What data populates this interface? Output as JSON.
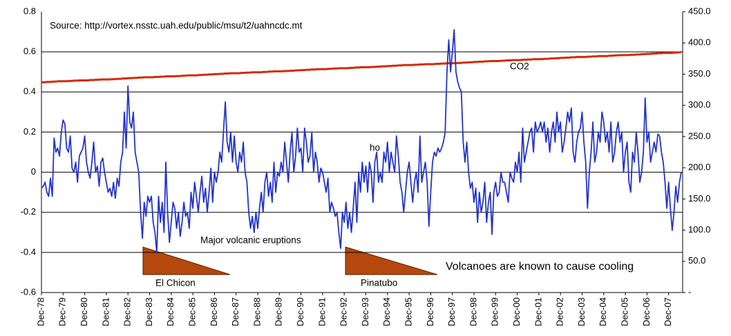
{
  "chart_data": {
    "type": "line",
    "annotations": [
      "Source: http://vortex.nsstc.uah.edu/public/msu/t2/uahncdc.mt",
      "CO2",
      "ho",
      "Major volcanic eruptions",
      "El Chicon",
      "Pinatubo",
      "Volcanoes are known to cause cooling"
    ],
    "categories": [
      "Dec-78",
      null,
      null,
      null,
      null,
      null,
      null,
      null,
      null,
      null,
      null,
      null,
      "Dec-79",
      null,
      null,
      null,
      null,
      null,
      null,
      null,
      null,
      null,
      null,
      null,
      "Dec-80",
      null,
      null,
      null,
      null,
      null,
      null,
      null,
      null,
      null,
      null,
      null,
      "Dec-81",
      null,
      null,
      null,
      null,
      null,
      null,
      null,
      null,
      null,
      null,
      null,
      "Dec-82",
      null,
      null,
      null,
      null,
      null,
      null,
      null,
      null,
      null,
      null,
      null,
      "Dec-83",
      null,
      null,
      null,
      null,
      null,
      null,
      null,
      null,
      null,
      null,
      null,
      "Dec-84",
      null,
      null,
      null,
      null,
      null,
      null,
      null,
      null,
      null,
      null,
      null,
      "Dec-85",
      null,
      null,
      null,
      null,
      null,
      null,
      null,
      null,
      null,
      null,
      null,
      "Dec-86",
      null,
      null,
      null,
      null,
      null,
      null,
      null,
      null,
      null,
      null,
      null,
      "Dec-87",
      null,
      null,
      null,
      null,
      null,
      null,
      null,
      null,
      null,
      null,
      null,
      "Dec-88",
      null,
      null,
      null,
      null,
      null,
      null,
      null,
      null,
      null,
      null,
      null,
      "Dec-89",
      null,
      null,
      null,
      null,
      null,
      null,
      null,
      null,
      null,
      null,
      null,
      "Dec-90",
      null,
      null,
      null,
      null,
      null,
      null,
      null,
      null,
      null,
      null,
      null,
      "Dec-91",
      null,
      null,
      null,
      null,
      null,
      null,
      null,
      null,
      null,
      null,
      null,
      "Dec-92",
      null,
      null,
      null,
      null,
      null,
      null,
      null,
      null,
      null,
      null,
      null,
      "Dec-93",
      null,
      null,
      null,
      null,
      null,
      null,
      null,
      null,
      null,
      null,
      null,
      "Dec-94",
      null,
      null,
      null,
      null,
      null,
      null,
      null,
      null,
      null,
      null,
      null,
      "Dec-95",
      null,
      null,
      null,
      null,
      null,
      null,
      null,
      null,
      null,
      null,
      null,
      "Dec-96",
      null,
      null,
      null,
      null,
      null,
      null,
      null,
      null,
      null,
      null,
      null,
      "Dec-97",
      null,
      null,
      null,
      null,
      null,
      null,
      null,
      null,
      null,
      null,
      null,
      "Dec-98",
      null,
      null,
      null,
      null,
      null,
      null,
      null,
      null,
      null,
      null,
      null,
      "Dec-99",
      null,
      null,
      null,
      null,
      null,
      null,
      null,
      null,
      null,
      null,
      null,
      "Dec-00",
      null,
      null,
      null,
      null,
      null,
      null,
      null,
      null,
      null,
      null,
      null,
      "Dec-01",
      null,
      null,
      null,
      null,
      null,
      null,
      null,
      null,
      null,
      null,
      null,
      "Dec-02",
      null,
      null,
      null,
      null,
      null,
      null,
      null,
      null,
      null,
      null,
      null,
      "Dec-03",
      null,
      null,
      null,
      null,
      null,
      null,
      null,
      null,
      null,
      null,
      null,
      "Dec-04",
      null,
      null,
      null,
      null,
      null,
      null,
      null,
      null,
      null,
      null,
      null,
      "Dec-05",
      null,
      null,
      null,
      null,
      null,
      null,
      null,
      null,
      null,
      null,
      null,
      "Dec-06",
      null,
      null,
      null,
      null,
      null,
      null,
      null,
      null,
      null,
      null,
      null,
      "Dec-07",
      null,
      null,
      null,
      null,
      null,
      null,
      null
    ],
    "series": [
      {
        "color": "#2233cc",
        "values": [
          -0.08,
          -0.07,
          -0.05,
          -0.1,
          -0.12,
          -0.03,
          -0.12,
          0.17,
          0.1,
          0.12,
          0.08,
          0.2,
          0.26,
          0.24,
          0.12,
          0.1,
          0.18,
          0.02,
          0.0,
          0.05,
          -0.05,
          0.08,
          0.1,
          0.12,
          0.18,
          0.05,
          0.0,
          -0.03,
          0.05,
          0.15,
          0.0,
          0.03,
          -0.07,
          0.05,
          0.07,
          0.0,
          -0.05,
          -0.1,
          -0.08,
          -0.12,
          -0.05,
          -0.13,
          -0.03,
          -0.07,
          0.05,
          0.1,
          0.3,
          0.12,
          0.43,
          0.25,
          0.22,
          0.3,
          0.1,
          0.05,
          0.0,
          -0.2,
          -0.33,
          -0.15,
          -0.22,
          -0.12,
          -0.15,
          -0.12,
          -0.25,
          -0.3,
          -0.4,
          -0.12,
          -0.25,
          -0.15,
          -0.3,
          0.05,
          -0.2,
          -0.35,
          -0.25,
          -0.15,
          -0.18,
          -0.28,
          -0.2,
          -0.32,
          -0.25,
          -0.15,
          -0.22,
          -0.2,
          -0.28,
          -0.1,
          -0.18,
          -0.05,
          -0.12,
          -0.2,
          -0.1,
          -0.02,
          -0.15,
          -0.08,
          -0.2,
          -0.1,
          0.02,
          -0.15,
          0.0,
          -0.05,
          0.0,
          0.1,
          0.05,
          0.2,
          0.35,
          0.15,
          0.1,
          0.2,
          0.05,
          0.18,
          0.05,
          0.0,
          0.1,
          0.05,
          0.15,
          0.0,
          -0.05,
          -0.2,
          -0.28,
          -0.22,
          -0.3,
          -0.2,
          -0.28,
          -0.18,
          -0.1,
          -0.2,
          -0.05,
          0.0,
          -0.12,
          -0.05,
          -0.15,
          0.05,
          -0.1,
          0.0,
          -0.02,
          0.05,
          0.0,
          0.15,
          0.05,
          -0.05,
          0.1,
          0.2,
          0.0,
          0.08,
          0.22,
          0.1,
          0.12,
          0.0,
          0.22,
          0.15,
          0.05,
          0.08,
          0.2,
          0.0,
          0.1,
          0.05,
          -0.05,
          0.02,
          0.0,
          -0.05,
          -0.1,
          -0.03,
          -0.2,
          -0.15,
          -0.18,
          -0.22,
          -0.2,
          -0.3,
          -0.38,
          -0.2,
          -0.25,
          -0.15,
          -0.28,
          -0.2,
          -0.3,
          -0.18,
          -0.05,
          -0.25,
          0.0,
          -0.1,
          0.05,
          -0.05,
          0.03,
          -0.1,
          0.05,
          0.0,
          -0.15,
          0.05,
          0.1,
          -0.05,
          0.0,
          -0.05,
          0.1,
          0.05,
          0.15,
          0.0,
          0.1,
          0.05,
          0.0,
          0.18,
          0.08,
          -0.05,
          -0.1,
          -0.2,
          -0.1,
          0.0,
          0.05,
          -0.05,
          -0.15,
          -0.05,
          0.0,
          -0.1,
          0.18,
          -0.05,
          0.0,
          0.05,
          -0.05,
          -0.27,
          -0.1,
          0.05,
          0.1,
          0.08,
          0.12,
          0.1,
          0.12,
          0.15,
          0.2,
          0.5,
          0.66,
          0.5,
          0.6,
          0.71,
          0.5,
          0.45,
          0.42,
          0.4,
          0.15,
          0.05,
          0.15,
          0.0,
          -0.08,
          -0.05,
          -0.15,
          -0.08,
          -0.25,
          -0.1,
          -0.2,
          -0.15,
          -0.05,
          -0.25,
          -0.15,
          -0.1,
          -0.31,
          -0.1,
          -0.05,
          -0.12,
          -0.1,
          0.0,
          -0.05,
          -0.05,
          -0.1,
          -0.15,
          0.0,
          -0.03,
          -0.05,
          0.05,
          0.0,
          0.1,
          -0.05,
          0.22,
          0.05,
          0.1,
          0.15,
          0.2,
          0.22,
          0.1,
          0.25,
          0.2,
          0.22,
          0.25,
          0.2,
          0.25,
          0.15,
          0.22,
          0.1,
          0.2,
          0.25,
          0.15,
          0.3,
          0.2,
          0.25,
          0.1,
          0.15,
          0.22,
          0.3,
          0.25,
          0.32,
          0.1,
          0.05,
          0.15,
          0.2,
          0.22,
          0.3,
          0.15,
          0.05,
          -0.18,
          0.0,
          0.1,
          0.25,
          0.05,
          0.1,
          0.2,
          0.15,
          0.3,
          0.25,
          0.15,
          0.2,
          0.1,
          0.25,
          0.05,
          0.1,
          0.2,
          0.25,
          0.15,
          0.2,
          0.0,
          0.1,
          0.15,
          -0.05,
          -0.1,
          0.1,
          0.05,
          0.2,
          0.1,
          -0.05,
          0.0,
          0.1,
          0.37,
          0.15,
          0.2,
          0.05,
          0.1,
          0.15,
          0.1,
          0.19,
          0.18,
          0.1,
          0.05,
          -0.05,
          -0.18,
          -0.05,
          -0.18,
          -0.29,
          -0.2,
          -0.07,
          -0.15,
          -0.05,
          0.0
        ]
      },
      {
        "color": "#d42a00",
        "axis": "y2",
        "values": [
          337,
          337,
          337,
          337.5,
          337.5,
          337.5,
          338,
          338,
          338,
          338.5,
          338.5,
          338.5,
          338.5,
          338.5,
          338.5,
          339,
          339,
          339,
          339.5,
          339.5,
          339.5,
          340,
          340,
          340,
          340,
          340,
          340,
          340.5,
          340.5,
          340.5,
          341,
          341,
          341,
          341.5,
          341.5,
          341.5,
          341.5,
          341.5,
          341.5,
          342,
          342,
          342,
          342.5,
          342.5,
          342.5,
          343,
          343,
          343,
          343.5,
          343.5,
          343.5,
          344,
          344,
          344,
          344.5,
          344.5,
          344.5,
          345,
          345,
          345,
          345,
          345,
          345,
          345.5,
          345.5,
          345.5,
          346,
          346,
          346,
          346.5,
          346.5,
          346.5,
          346.5,
          346.5,
          346.5,
          347,
          347,
          347,
          347.5,
          347.5,
          347.5,
          348,
          348,
          348,
          348,
          348,
          348,
          348.5,
          348.5,
          348.5,
          349,
          349,
          349,
          349.5,
          349.5,
          349.5,
          350,
          350,
          350,
          350.5,
          350.5,
          350.5,
          351,
          351,
          351,
          351.5,
          351.5,
          351.5,
          351.5,
          351.5,
          351.5,
          352,
          352,
          352,
          352.5,
          352.5,
          352.5,
          353,
          353,
          353,
          353,
          353,
          353,
          353.5,
          353.5,
          353.5,
          354,
          354,
          354,
          354.5,
          354.5,
          354.5,
          354.5,
          354.5,
          354.5,
          355,
          355,
          355,
          355.5,
          355.5,
          355.5,
          356,
          356,
          356,
          356.5,
          356.5,
          356.5,
          357,
          357,
          357,
          357.5,
          357.5,
          357.5,
          358,
          358,
          358,
          358,
          358,
          358,
          358.5,
          358.5,
          358.5,
          359,
          359,
          359,
          359.5,
          359.5,
          359.5,
          359.5,
          359.5,
          359.5,
          360,
          360,
          360,
          360.5,
          360.5,
          360.5,
          361,
          361,
          361,
          361,
          361,
          361,
          361.5,
          361.5,
          361.5,
          362,
          362,
          362,
          362.5,
          362.5,
          362.5,
          363,
          363,
          363,
          363.5,
          363.5,
          363.5,
          364,
          364,
          364,
          364.5,
          364.5,
          364.5,
          364.5,
          364.5,
          364.5,
          365,
          365,
          365,
          365.5,
          365.5,
          365.5,
          366,
          366,
          366,
          366,
          366,
          366,
          366.5,
          366.5,
          366.5,
          367,
          367,
          367,
          367.5,
          367.5,
          367.5,
          367.5,
          367.5,
          367.5,
          368,
          368,
          368,
          368.5,
          368.5,
          368.5,
          369,
          369,
          369,
          369.5,
          369.5,
          369.5,
          370,
          370,
          370,
          370.5,
          370.5,
          370.5,
          371,
          371,
          371,
          371,
          371,
          371,
          371.5,
          371.5,
          371.5,
          372,
          372,
          372,
          372.5,
          372.5,
          372.5,
          372.5,
          372.5,
          372.5,
          373,
          373,
          373,
          373.5,
          373.5,
          373.5,
          374,
          374,
          374,
          374,
          374,
          374,
          374.5,
          374.5,
          374.5,
          375,
          375,
          375,
          375.5,
          375.5,
          375.5,
          376,
          376,
          376,
          376.5,
          376.5,
          376.5,
          377,
          377,
          377,
          377.5,
          377.5,
          377.5,
          377.5,
          377.5,
          377.5,
          378,
          378,
          378,
          378.5,
          378.5,
          378.5,
          379,
          379,
          379,
          379,
          379,
          379,
          379.5,
          379.5,
          379.5,
          380,
          380,
          380,
          380.5,
          380.5,
          380.5,
          380.5,
          380.5,
          380.5,
          381,
          381,
          381,
          381.5,
          381.5,
          381.5,
          382,
          382,
          382,
          382.5,
          382.5,
          382.5,
          383,
          383,
          383,
          383.5,
          383.5,
          383.5,
          384,
          384,
          384,
          384,
          384,
          384,
          384.5,
          384.5,
          384.5,
          385,
          385
        ]
      }
    ],
    "ylim": [
      -0.6,
      0.8
    ],
    "yticks": [
      0.8,
      0.6,
      0.4,
      0.2,
      0,
      -0.2,
      -0.4,
      -0.6
    ],
    "y2lim": [
      0,
      450
    ],
    "y2ticks": [
      {
        "value": 450,
        "label": "450.0"
      },
      {
        "value": 400,
        "label": "400.0"
      },
      {
        "value": 350,
        "label": "350.0"
      },
      {
        "value": 300,
        "label": "300.0"
      },
      {
        "value": 250,
        "label": "250.0"
      },
      {
        "value": 200,
        "label": "200.0"
      },
      {
        "value": 150,
        "label": "150.0"
      },
      {
        "value": 100,
        "label": "100.0"
      },
      {
        "value": 50,
        "label": "50.0"
      },
      {
        "value": 0,
        "label": "-"
      }
    ],
    "grid": true
  }
}
